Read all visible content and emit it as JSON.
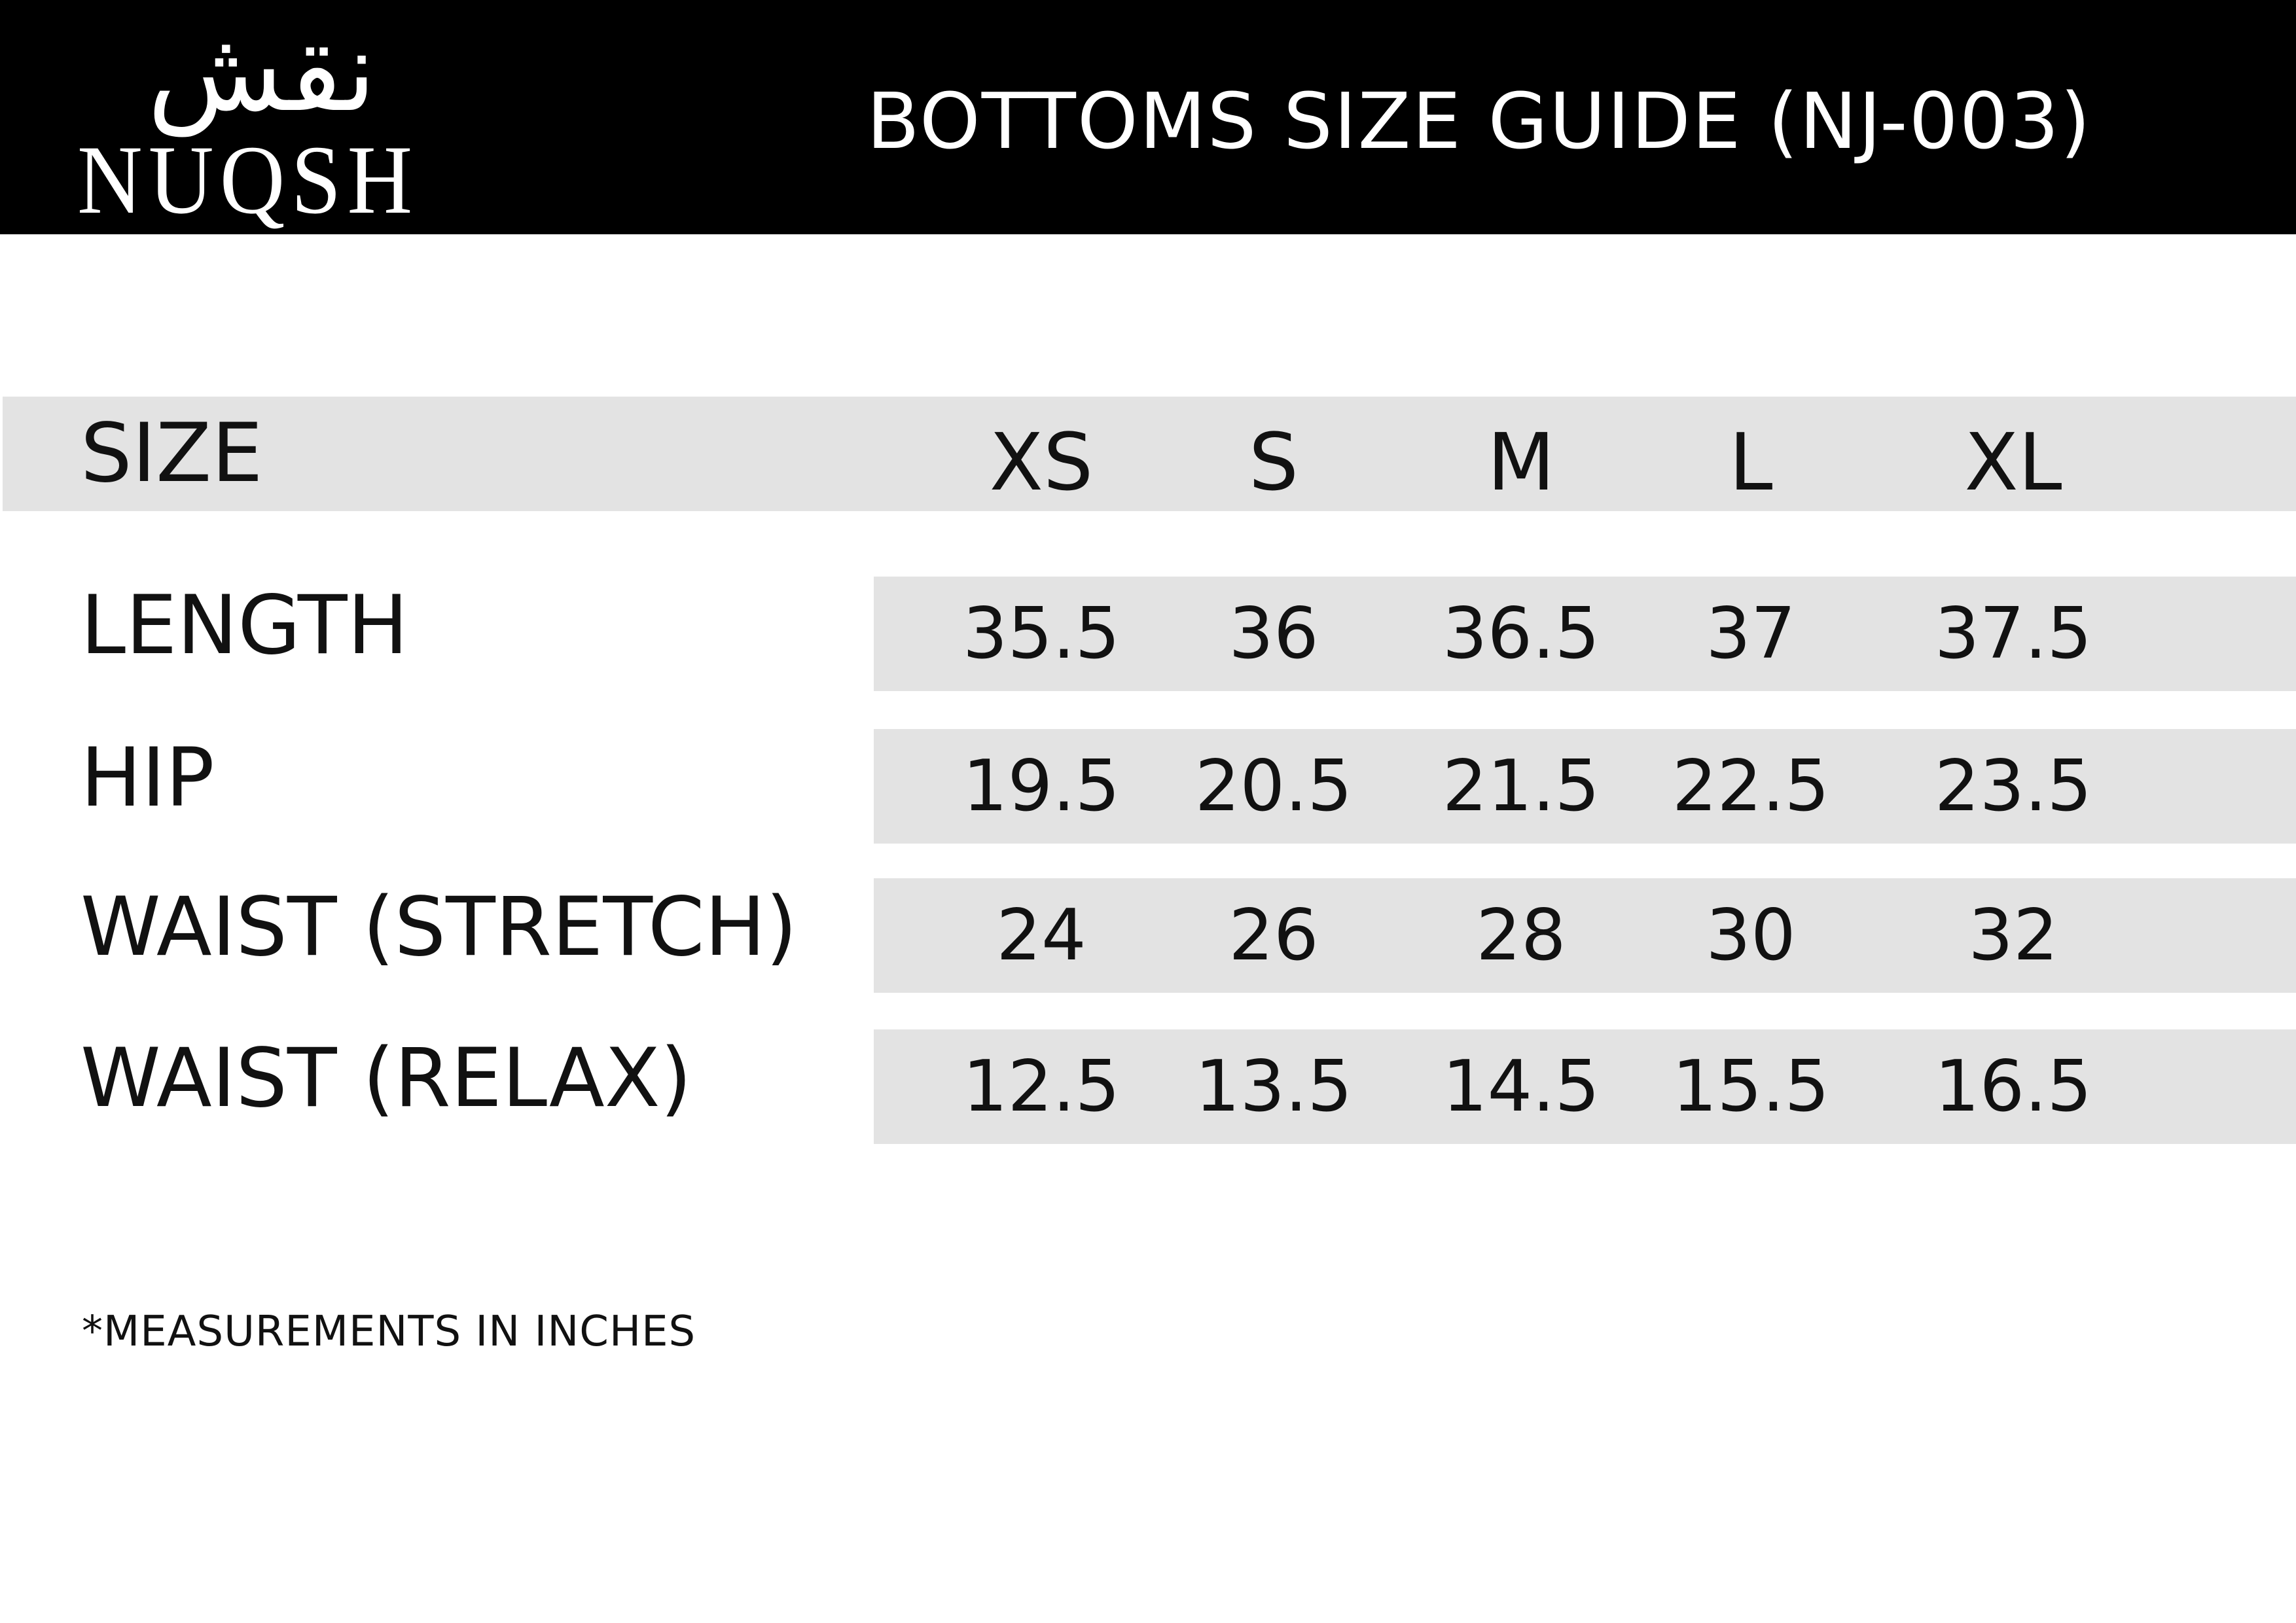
{
  "brand": {
    "arabic": "نقش",
    "name": "NUQSH"
  },
  "title": "BOTTOMS SIZE GUIDE (NJ-003)",
  "table": {
    "header_label": "SIZE",
    "sizes": [
      "XS",
      "S",
      "M",
      "L",
      "XL"
    ],
    "rows": [
      {
        "label": "LENGTH",
        "values": [
          "35.5",
          "36",
          "36.5",
          "37",
          "37.5"
        ]
      },
      {
        "label": "HIP",
        "values": [
          "19.5",
          "20.5",
          "21.5",
          "22.5",
          "23.5"
        ]
      },
      {
        "label": "WAIST (STRETCH)",
        "values": [
          "24",
          "26",
          "28",
          "30",
          "32"
        ]
      },
      {
        "label": "WAIST (RELAX)",
        "values": [
          "12.5",
          "13.5",
          "14.5",
          "15.5",
          "16.5"
        ]
      }
    ]
  },
  "footnote": "*MEASUREMENTS IN INCHES",
  "colors": {
    "header_bg": "#000000",
    "row_bg": "#e3e3e3"
  }
}
